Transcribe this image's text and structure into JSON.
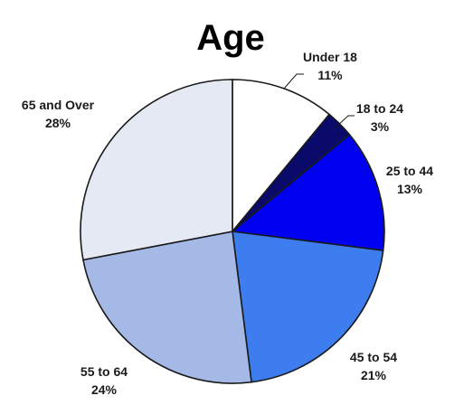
{
  "chart_data": {
    "type": "pie",
    "title": "Age",
    "start_angle_deg": 0,
    "direction": "clockwise",
    "slices": [
      {
        "label": "Under 18",
        "value": 11,
        "value_label": "11%",
        "color": "#ffffff"
      },
      {
        "label": "18 to 24",
        "value": 3,
        "value_label": "3%",
        "color": "#0a0a6b"
      },
      {
        "label": "25 to 44",
        "value": 13,
        "value_label": "13%",
        "color": "#0000f0"
      },
      {
        "label": "45 to 54",
        "value": 21,
        "value_label": "21%",
        "color": "#3d7df0"
      },
      {
        "label": "55 to 64",
        "value": 24,
        "value_label": "24%",
        "color": "#a4b9e6"
      },
      {
        "label": "65 and Over",
        "value": 28,
        "value_label": "28%",
        "color": "#e4e9f3"
      }
    ]
  }
}
